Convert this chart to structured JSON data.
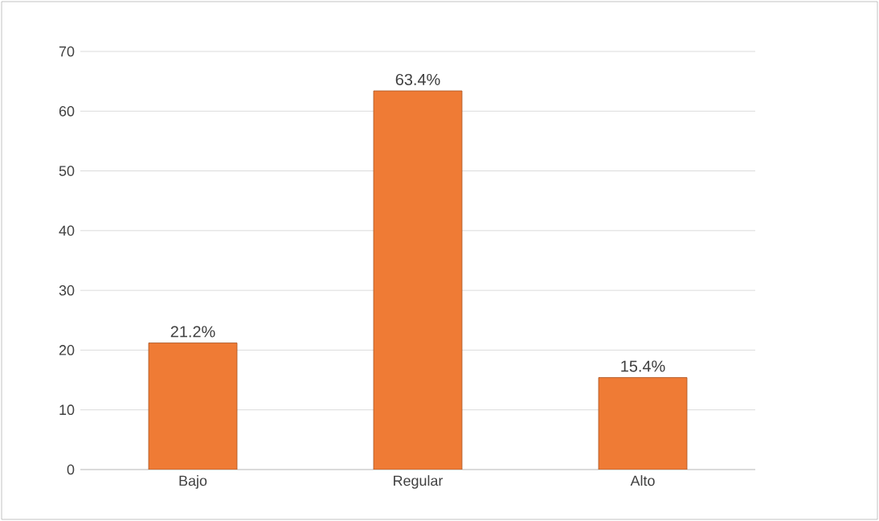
{
  "chart_data": {
    "type": "bar",
    "categories": [
      "Bajo",
      "Regular",
      "Alto"
    ],
    "values": [
      21.2,
      63.4,
      15.4
    ],
    "value_labels": [
      "21.2%",
      "63.4%",
      "15.4%"
    ],
    "color": "#ef7b35",
    "ylim": [
      0,
      70
    ],
    "yticks": [
      0,
      10,
      20,
      30,
      40,
      50,
      60,
      70
    ],
    "grid": "y"
  }
}
